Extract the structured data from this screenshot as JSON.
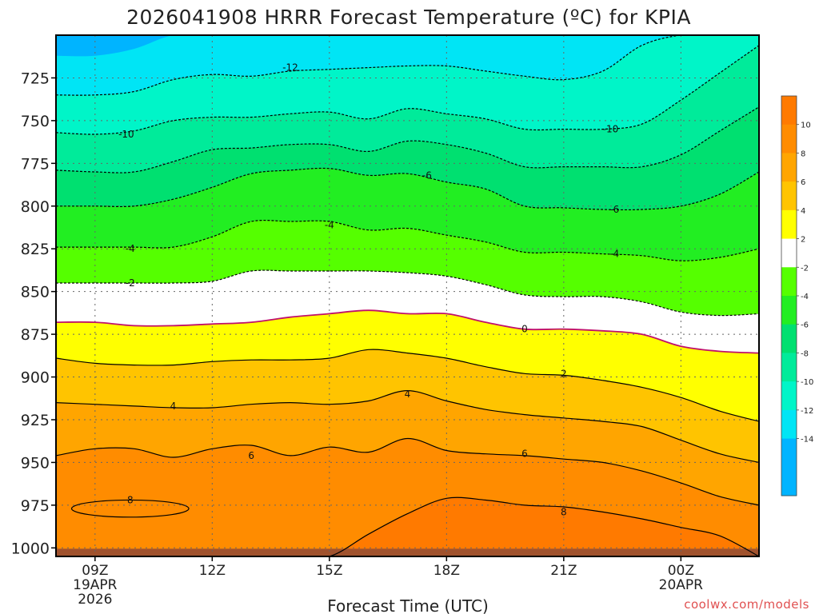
{
  "chart_data": {
    "type": "heatmap",
    "title": "2026041908 HRRR Forecast Temperature (ºC) for KPIA",
    "xlabel": "Forecast Time (UTC)",
    "ylabel": "",
    "credit": "coolwx.com/models",
    "x_hours": [
      0,
      1,
      2,
      3,
      4,
      5,
      6,
      7,
      8,
      9,
      10,
      11,
      12,
      13,
      14,
      15,
      16,
      17,
      18
    ],
    "x_ticks": [
      {
        "hour": 1,
        "lines": [
          "09Z",
          "19APR",
          "2026"
        ]
      },
      {
        "hour": 4,
        "lines": [
          "12Z"
        ]
      },
      {
        "hour": 7,
        "lines": [
          "15Z"
        ]
      },
      {
        "hour": 10,
        "lines": [
          "18Z"
        ]
      },
      {
        "hour": 13,
        "lines": [
          "21Z"
        ]
      },
      {
        "hour": 16,
        "lines": [
          "00Z",
          "20APR"
        ]
      }
    ],
    "ylim": [
      700,
      1005
    ],
    "y_ticks": [
      725,
      750,
      775,
      800,
      825,
      850,
      875,
      900,
      925,
      950,
      975,
      1000
    ],
    "colorbar": {
      "labels": [
        "10",
        "8",
        "6",
        "4",
        "2",
        "-2",
        "-4",
        "-6",
        "-8",
        "-10",
        "-12",
        "-14"
      ],
      "bands": [
        {
          "level": 12,
          "color": "#ff7a00"
        },
        {
          "level": 10,
          "color": "#ff8c00"
        },
        {
          "level": 8,
          "color": "#ffa500"
        },
        {
          "level": 6,
          "color": "#ffc400"
        },
        {
          "level": 4,
          "color": "#ffff00"
        },
        {
          "level": 2,
          "color": "#ffffff"
        },
        {
          "level": -2,
          "color": "#55ff00"
        },
        {
          "level": -4,
          "color": "#22ee22"
        },
        {
          "level": -6,
          "color": "#00e070"
        },
        {
          "level": -8,
          "color": "#00eb9a"
        },
        {
          "level": -10,
          "color": "#00f5c8"
        },
        {
          "level": -12,
          "color": "#00e5f5"
        },
        {
          "level": -14,
          "color": "#00b4ff"
        },
        {
          "level": -16,
          "color": "#00b4ff"
        }
      ]
    },
    "surface_color": "#a0522d",
    "contours": [
      {
        "level": -14,
        "fill": "#00b4ff",
        "p": [
          712,
          712,
          708,
          700,
          700,
          700,
          700,
          700,
          700,
          700,
          700,
          700,
          700,
          700,
          700,
          700,
          700,
          700,
          700
        ]
      },
      {
        "level": -12,
        "fill": "#00e5f5",
        "p": [
          735,
          735,
          733,
          726,
          723,
          724,
          721,
          720,
          719,
          718,
          718,
          721,
          724,
          726,
          721,
          706,
          700,
          700,
          700
        ]
      },
      {
        "level": -10,
        "fill": "#00f5c8",
        "p": [
          757,
          758,
          756,
          750,
          748,
          748,
          746,
          745,
          749,
          743,
          746,
          749,
          755,
          755,
          755,
          752,
          738,
          722,
          706
        ]
      },
      {
        "level": -8,
        "fill": "#00eb9a",
        "p": [
          779,
          780,
          780,
          774,
          767,
          766,
          764,
          764,
          768,
          762,
          764,
          769,
          777,
          777,
          777,
          777,
          770,
          756,
          742
        ]
      },
      {
        "level": -6,
        "fill": "#00e070",
        "p": [
          800,
          800,
          800,
          796,
          789,
          781,
          779,
          778,
          782,
          781,
          786,
          790,
          800,
          801,
          802,
          802,
          800,
          793,
          780
        ]
      },
      {
        "level": -4,
        "fill": "#22ee22",
        "p": [
          824,
          824,
          824,
          824,
          818,
          809,
          809,
          809,
          814,
          813,
          817,
          821,
          827,
          827,
          828,
          829,
          832,
          830,
          825
        ]
      },
      {
        "level": -2,
        "fill": "#55ff00",
        "p": [
          845,
          845,
          845,
          845,
          844,
          838,
          838,
          838,
          838,
          839,
          841,
          846,
          852,
          853,
          853,
          856,
          862,
          864,
          863
        ]
      },
      {
        "level": 0,
        "fill": "#ffffff",
        "p": [
          868,
          868,
          870,
          870,
          869,
          868,
          865,
          863,
          861,
          863,
          863,
          868,
          872,
          872,
          873,
          875,
          882,
          885,
          886
        ]
      },
      {
        "level": 2,
        "fill": "#ffff00",
        "p": [
          889,
          892,
          893,
          893,
          891,
          890,
          890,
          889,
          884,
          886,
          889,
          894,
          898,
          899,
          902,
          906,
          912,
          920,
          926
        ]
      },
      {
        "level": 4,
        "fill": "#ffc400",
        "p": [
          915,
          916,
          917,
          918,
          918,
          916,
          915,
          916,
          914,
          908,
          914,
          919,
          922,
          924,
          926,
          929,
          937,
          945,
          950
        ]
      },
      {
        "level": 6,
        "fill": "#ffa500",
        "p": [
          946,
          942,
          942,
          947,
          942,
          940,
          946,
          941,
          944,
          936,
          943,
          945,
          946,
          948,
          950,
          955,
          962,
          970,
          975
        ]
      },
      {
        "level": 8,
        "fill": "#ff8c00",
        "p": [
          1005,
          1005,
          1005,
          1005,
          1005,
          1005,
          1005,
          1005,
          992,
          980,
          971,
          972,
          975,
          976,
          979,
          983,
          988,
          993,
          1005
        ]
      },
      {
        "level": 10,
        "fill": "#ff7a00",
        "p": [
          1005,
          1005,
          1005,
          1005,
          1005,
          1005,
          1005,
          1005,
          1005,
          999,
          990,
          992,
          995,
          997,
          999,
          1000,
          1005,
          1005,
          1005
        ]
      }
    ],
    "contour_labels": [
      {
        "text": "-12",
        "hour": 6.0,
        "p": 719
      },
      {
        "text": "-10",
        "hour": 1.8,
        "p": 758
      },
      {
        "text": "-10",
        "hour": 14.2,
        "p": 755
      },
      {
        "text": "-6",
        "hour": 9.5,
        "p": 782
      },
      {
        "text": "-6",
        "hour": 14.3,
        "p": 802
      },
      {
        "text": "-4",
        "hour": 7.0,
        "p": 811
      },
      {
        "text": "-4",
        "hour": 1.9,
        "p": 825
      },
      {
        "text": "-4",
        "hour": 14.3,
        "p": 828
      },
      {
        "text": "-2",
        "hour": 1.9,
        "p": 845
      },
      {
        "text": "0",
        "hour": 12.0,
        "p": 872
      },
      {
        "text": "2",
        "hour": 13.0,
        "p": 898
      },
      {
        "text": "4",
        "hour": 3.0,
        "p": 917
      },
      {
        "text": "4",
        "hour": 9.0,
        "p": 910
      },
      {
        "text": "6",
        "hour": 5.0,
        "p": 946
      },
      {
        "text": "6",
        "hour": 12.0,
        "p": 945
      },
      {
        "text": "8",
        "hour": 1.9,
        "p": 972
      },
      {
        "text": "8",
        "hour": 13.0,
        "p": 979
      }
    ],
    "blob": {
      "level": 8,
      "center_hour": 1.9,
      "center_p": 977,
      "hour_radius": 1.5,
      "p_radius": 5
    }
  }
}
